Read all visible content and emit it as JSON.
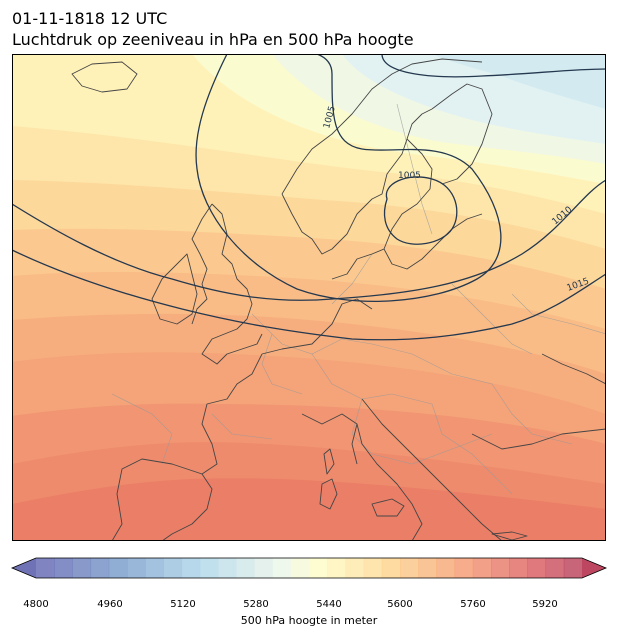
{
  "header": {
    "datetime": "01-11-1818 12 UTC",
    "subtitle": "Luchtdruk op zeeniveau in hPa en 500 hPa hoogte"
  },
  "map": {
    "isobar_labels": [
      "1005",
      "1005",
      "1010",
      "1015"
    ]
  },
  "colorbar": {
    "min": 4800,
    "max": 6000,
    "step": 40,
    "ticks": [
      "4800",
      "4960",
      "5120",
      "5280",
      "5440",
      "5600",
      "5760",
      "5920"
    ],
    "label": "500 hPa hoogte in meter",
    "extend": "both"
  },
  "colors": {
    "isobar": "#24384f",
    "coastline": "#444444",
    "border": "#999999"
  }
}
